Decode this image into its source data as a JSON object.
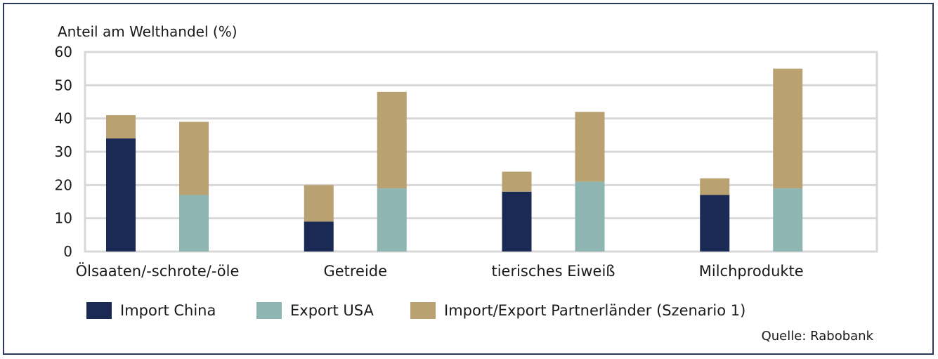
{
  "chart_data": {
    "type": "bar",
    "stacked": true,
    "ylabel": "Anteil am Welthandel (%)",
    "ylim": [
      0,
      60
    ],
    "yticks": [
      0,
      10,
      20,
      30,
      40,
      50,
      60
    ],
    "categories": [
      "Ölsaaten/-schrote/-öle",
      "Getreide",
      "tierisches Eiweiß",
      "Milchprodukte"
    ],
    "series": [
      {
        "name": "Import China",
        "color": "#1b2a55",
        "values": [
          34,
          9,
          18,
          17
        ]
      },
      {
        "name": "Export USA",
        "color": "#8fb5b3",
        "values": [
          17,
          19,
          21,
          19
        ]
      },
      {
        "name": "Import/Export Partnerländer (Szenario 1)",
        "color": "#b9a172",
        "stacked_on": {
          "Import China": [
            7,
            11,
            6,
            5
          ],
          "Export USA": [
            22,
            29,
            21,
            36
          ]
        }
      }
    ],
    "grid": true,
    "legend_position": "bottom",
    "source": "Quelle: Rabobank"
  }
}
